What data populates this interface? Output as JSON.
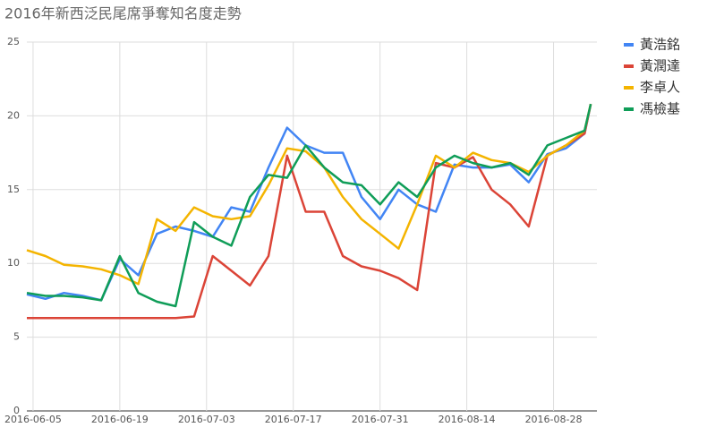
{
  "chart_data": {
    "type": "line",
    "title": "2016年新西泛民尾席爭奪知名度走勢",
    "x": [
      "2016-06-04",
      "2016-06-07",
      "2016-06-10",
      "2016-06-13",
      "2016-06-16",
      "2016-06-19",
      "2016-06-22",
      "2016-06-25",
      "2016-06-28",
      "2016-07-01",
      "2016-07-04",
      "2016-07-07",
      "2016-07-10",
      "2016-07-13",
      "2016-07-16",
      "2016-07-19",
      "2016-07-22",
      "2016-07-25",
      "2016-07-28",
      "2016-07-31",
      "2016-08-03",
      "2016-08-06",
      "2016-08-09",
      "2016-08-12",
      "2016-08-15",
      "2016-08-18",
      "2016-08-21",
      "2016-08-24",
      "2016-08-27",
      "2016-08-30",
      "2016-09-02",
      "2016-09-03"
    ],
    "series": [
      {
        "name": "黃浩銘",
        "color": "#4285f4",
        "values": [
          7.9,
          7.6,
          8.0,
          7.8,
          7.5,
          10.3,
          9.2,
          12,
          12.5,
          12.2,
          11.8,
          13.8,
          13.5,
          16.5,
          19.2,
          18,
          17.5,
          17.5,
          14.5,
          13,
          15,
          14,
          13.5,
          16.7,
          16.5,
          16.5,
          16.7,
          15.5,
          17.4,
          17.8,
          18.8,
          20.8
        ]
      },
      {
        "name": "黃潤達",
        "color": "#db4437",
        "values": [
          6.3,
          6.3,
          6.3,
          6.3,
          6.3,
          6.3,
          6.3,
          6.3,
          6.3,
          6.4,
          10.5,
          9.5,
          8.5,
          10.5,
          17.3,
          13.5,
          13.5,
          10.5,
          9.8,
          9.5,
          9,
          8.2,
          16.8,
          16.5,
          17.2,
          15,
          14,
          12.5,
          17.3,
          18,
          18.8,
          20.8
        ]
      },
      {
        "name": "李卓人",
        "color": "#f4b400",
        "values": [
          10.9,
          10.5,
          9.9,
          9.8,
          9.6,
          9.2,
          8.6,
          13,
          12.2,
          13.8,
          13.2,
          13,
          13.2,
          15.3,
          17.8,
          17.6,
          16.5,
          14.5,
          13,
          12,
          11,
          14,
          17.3,
          16.5,
          17.5,
          17,
          16.8,
          16.2,
          17.3,
          18,
          19,
          20.8
        ]
      },
      {
        "name": "馮檢基",
        "color": "#0f9d58",
        "values": [
          8.0,
          7.8,
          7.8,
          7.7,
          7.5,
          10.5,
          8.0,
          7.4,
          7.1,
          12.8,
          11.8,
          11.2,
          14.5,
          16,
          15.8,
          18,
          16.5,
          15.5,
          15.3,
          14,
          15.5,
          14.5,
          16.5,
          17.3,
          16.8,
          16.5,
          16.8,
          16,
          18,
          18.5,
          19,
          20.8
        ]
      }
    ],
    "xlim": [
      "2016-06-04",
      "2016-09-04"
    ],
    "xticks": [
      "2016-06-05",
      "2016-06-19",
      "2016-07-03",
      "2016-07-17",
      "2016-07-31",
      "2016-08-14",
      "2016-08-28"
    ],
    "ylim": [
      0,
      25
    ],
    "yticks": [
      0,
      5,
      10,
      15,
      20,
      25
    ],
    "grid": true,
    "legend": "right"
  }
}
